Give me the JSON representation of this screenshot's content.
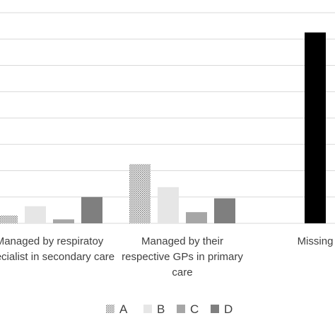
{
  "chart_data": {
    "type": "bar",
    "categories": [
      [
        "Managed by respiratoy",
        "specialist in secondary care"
      ],
      [
        "Managed by their",
        "respective GPs in primary",
        "care"
      ],
      [
        "Missing"
      ]
    ],
    "series": [
      {
        "name": "A",
        "color": "#c8c8c8",
        "pattern": "dotted",
        "values": [
          1.2,
          9.0,
          null
        ]
      },
      {
        "name": "B",
        "color": "#e6e6e6",
        "values": [
          2.6,
          5.5,
          null
        ]
      },
      {
        "name": "C",
        "color": "#a6a6a6",
        "values": [
          0.6,
          1.7,
          null
        ]
      },
      {
        "name": "D",
        "color": "#7f7f7f",
        "values": [
          4.0,
          3.8,
          null
        ]
      },
      {
        "name": "Missing",
        "color": "#000000",
        "values": [
          null,
          null,
          29.0
        ]
      }
    ],
    "ylim": [
      0,
      32
    ],
    "grid": true,
    "legend": "bottom",
    "legend_entries": [
      "A",
      "B",
      "C",
      "D"
    ]
  }
}
